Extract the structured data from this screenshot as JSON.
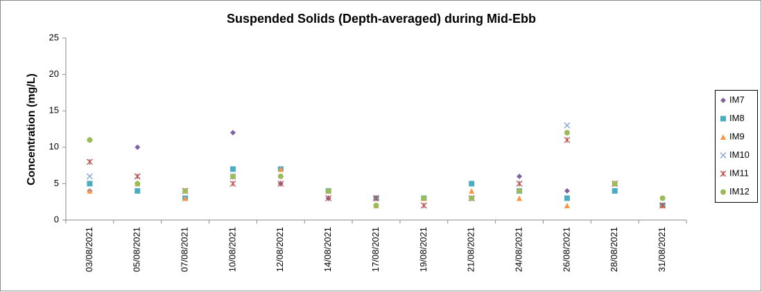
{
  "chart_data": {
    "type": "scatter",
    "title": "Suspended Solids (Depth-averaged) during Mid-Ebb",
    "y_label": "Concentration (mg/L)",
    "categories": [
      "03/08/2021",
      "05/08/2021",
      "07/08/2021",
      "10/08/2021",
      "12/08/2021",
      "14/08/2021",
      "17/08/2021",
      "19/08/2021",
      "21/08/2021",
      "24/08/2021",
      "26/08/2021",
      "28/08/2021",
      "31/08/2021"
    ],
    "series": [
      {
        "name": "IM7",
        "color": "#8064a2",
        "marker": "diamond",
        "values": [
          4,
          10,
          4,
          12,
          5,
          3,
          2,
          3,
          3,
          6,
          4,
          5,
          2
        ]
      },
      {
        "name": "IM8",
        "color": "#4bacc6",
        "marker": "square",
        "values": [
          5,
          4,
          3,
          7,
          7,
          4,
          3,
          3,
          5,
          4,
          3,
          4,
          2
        ]
      },
      {
        "name": "IM9",
        "color": "#f79646",
        "marker": "triangle",
        "values": [
          4,
          5,
          3,
          6,
          7,
          4,
          2,
          3,
          4,
          3,
          2,
          5,
          2
        ]
      },
      {
        "name": "IM10",
        "color": "#7f9fd9",
        "marker": "x",
        "values": [
          6,
          6,
          4,
          6,
          5,
          3,
          3,
          2,
          3,
          5,
          13,
          5,
          2
        ]
      },
      {
        "name": "IM11",
        "color": "#c0504d",
        "marker": "star",
        "values": [
          8,
          6,
          4,
          5,
          5,
          3,
          3,
          2,
          3,
          5,
          11,
          5,
          2
        ]
      },
      {
        "name": "IM12",
        "color": "#9bbb59",
        "marker": "circle",
        "values": [
          11,
          5,
          4,
          6,
          6,
          4,
          2,
          3,
          3,
          4,
          12,
          5,
          3
        ]
      }
    ],
    "ylim": [
      0,
      25
    ],
    "yticks": [
      0,
      5,
      10,
      15,
      20,
      25
    ],
    "grid": false,
    "legend": "right"
  }
}
